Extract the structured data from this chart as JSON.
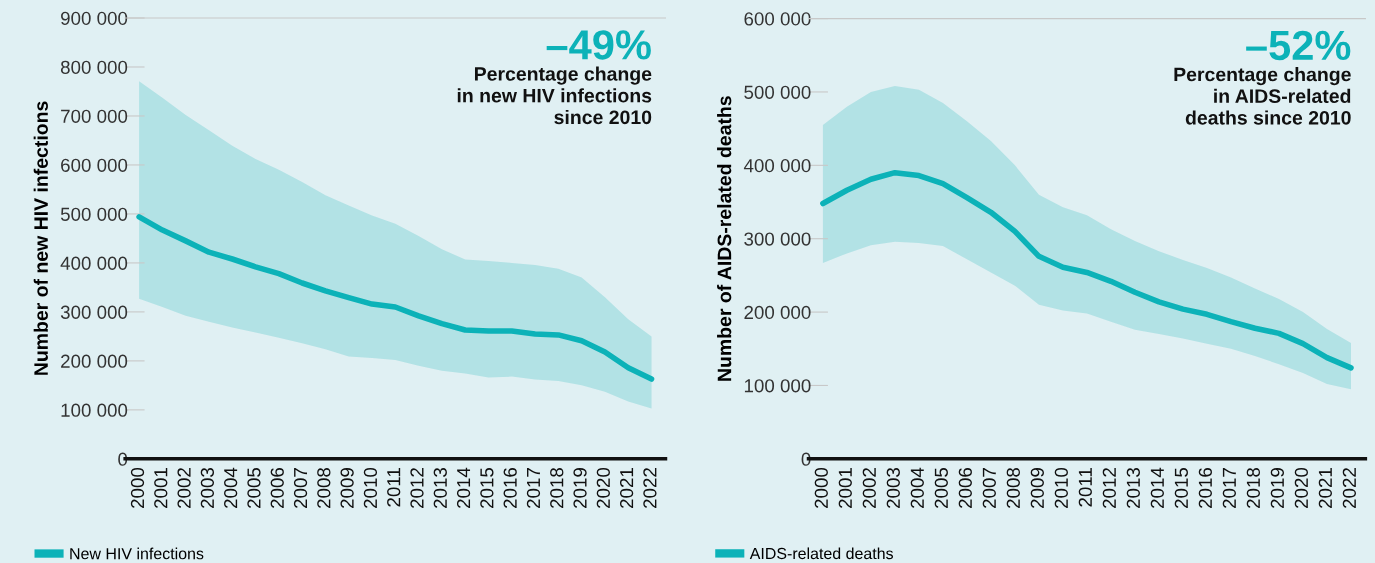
{
  "chart_data": [
    {
      "type": "line",
      "ylabel": "Number of new HIV infections",
      "annotations": [
        "–49%",
        "Percentage change\nin new HIV infections\nsince 2010"
      ],
      "categories": [
        "2000",
        "2001",
        "2002",
        "2003",
        "2004",
        "2005",
        "2006",
        "2007",
        "2008",
        "2009",
        "2010",
        "2011",
        "2012",
        "2013",
        "2014",
        "2015",
        "2016",
        "2017",
        "2018",
        "2019",
        "2020",
        "2021",
        "2022"
      ],
      "series": [
        {
          "name": "New HIV infections",
          "color": "#0cb2b8",
          "values": [
            494000,
            467000,
            445000,
            422000,
            408000,
            392000,
            378000,
            359000,
            343000,
            329000,
            316000,
            310000,
            292000,
            276000,
            263000,
            261000,
            261000,
            255000,
            253000,
            241000,
            218000,
            186000,
            163000
          ],
          "upper": [
            771000,
            737000,
            702000,
            671000,
            639000,
            612000,
            590000,
            565000,
            538000,
            517000,
            497000,
            480000,
            455000,
            428000,
            407000,
            404000,
            400000,
            396000,
            388000,
            370000,
            330000,
            285000,
            250000
          ],
          "lower": [
            327000,
            310000,
            292000,
            280000,
            268000,
            258000,
            247000,
            236000,
            224000,
            209000,
            206000,
            202000,
            190000,
            180000,
            174000,
            166000,
            168000,
            162000,
            159000,
            150000,
            137000,
            117000,
            103000
          ]
        }
      ],
      "ylim": [
        0,
        900000
      ],
      "yticks": [
        {
          "value": 0,
          "label": "0"
        },
        {
          "value": 100000,
          "label": "100 000"
        },
        {
          "value": 200000,
          "label": "200 000"
        },
        {
          "value": 300000,
          "label": "300 000"
        },
        {
          "value": 400000,
          "label": "400 000"
        },
        {
          "value": 500000,
          "label": "500 000"
        },
        {
          "value": 600000,
          "label": "600 000"
        },
        {
          "value": 700000,
          "label": "700 000"
        },
        {
          "value": 800000,
          "label": "800 000"
        },
        {
          "value": 900000,
          "label": "900 000"
        }
      ],
      "grid": false,
      "legend": "bottom left",
      "marker": "none",
      "line_style": "solid"
    },
    {
      "type": "line",
      "ylabel": "Number of AIDS-related deaths",
      "annotations": [
        "–52%",
        "Percentage change\nin AIDS-related\ndeaths since 2010"
      ],
      "categories": [
        "2000",
        "2001",
        "2002",
        "2003",
        "2004",
        "2005",
        "2006",
        "2007",
        "2008",
        "2009",
        "2010",
        "2011",
        "2012",
        "2013",
        "2014",
        "2015",
        "2016",
        "2017",
        "2018",
        "2019",
        "2020",
        "2021",
        "2022"
      ],
      "series": [
        {
          "name": "AIDS-related deaths",
          "color": "#0cb2b8",
          "values": [
            348000,
            366000,
            381000,
            390000,
            386000,
            375000,
            356000,
            336000,
            310000,
            276000,
            261000,
            254000,
            242000,
            227000,
            214000,
            204000,
            197000,
            187000,
            178000,
            171000,
            157000,
            138000,
            124000
          ],
          "upper": [
            455000,
            480000,
            500000,
            508000,
            503000,
            485000,
            460000,
            433000,
            400000,
            360000,
            343000,
            332000,
            313000,
            297000,
            283000,
            271000,
            260000,
            247000,
            232000,
            218000,
            200000,
            177000,
            158000
          ],
          "lower": [
            267000,
            280000,
            291000,
            296000,
            294000,
            290000,
            272000,
            254000,
            236000,
            210000,
            202000,
            198000,
            187000,
            176000,
            170000,
            164000,
            157000,
            150000,
            140000,
            129000,
            117000,
            102000,
            95000
          ]
        }
      ],
      "ylim": [
        0,
        600000
      ],
      "yticks": [
        {
          "value": 0,
          "label": "0"
        },
        {
          "value": 100000,
          "label": "100 000"
        },
        {
          "value": 200000,
          "label": "200 000"
        },
        {
          "value": 300000,
          "label": "300 000"
        },
        {
          "value": 400000,
          "label": "400 000"
        },
        {
          "value": 500000,
          "label": "500 000"
        },
        {
          "value": 600000,
          "label": "600 000"
        }
      ],
      "grid": false,
      "legend": "bottom left",
      "marker": "none",
      "line_style": "solid"
    }
  ]
}
